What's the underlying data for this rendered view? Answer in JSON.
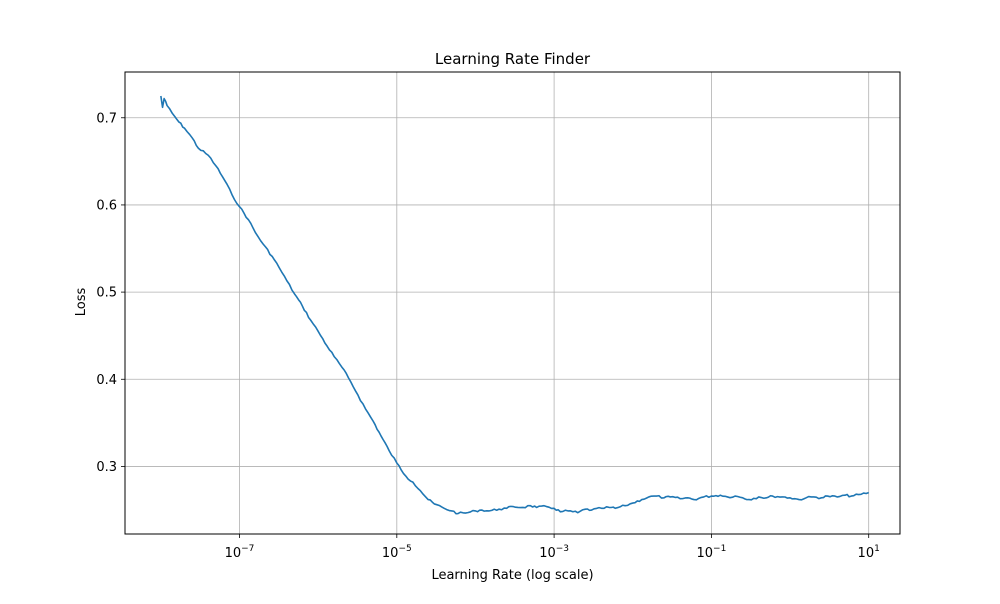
{
  "colors": {
    "line": "#1f77b4",
    "grid": "#b0b0b0",
    "axis": "#000000",
    "background": "#ffffff"
  },
  "chart_data": {
    "type": "line",
    "title": "Learning Rate Finder",
    "xlabel": "Learning Rate (log scale)",
    "ylabel": "Loss",
    "xscale": "log",
    "xlim": [
      3.5e-09,
      25
    ],
    "ylim": [
      0.2225,
      0.7525
    ],
    "grid": true,
    "legend": "none",
    "x_ticks": [
      {
        "value": 1e-07,
        "base": "10",
        "exp": "−7"
      },
      {
        "value": 1e-05,
        "base": "10",
        "exp": "−5"
      },
      {
        "value": 0.001,
        "base": "10",
        "exp": "−3"
      },
      {
        "value": 0.1,
        "base": "10",
        "exp": "−1"
      },
      {
        "value": 10,
        "base": "10",
        "exp": "1"
      }
    ],
    "y_ticks": [
      {
        "value": 0.3,
        "label": "0.3"
      },
      {
        "value": 0.4,
        "label": "0.4"
      },
      {
        "value": 0.5,
        "label": "0.5"
      },
      {
        "value": 0.6,
        "label": "0.6"
      },
      {
        "value": 0.7,
        "label": "0.7"
      }
    ],
    "series": [
      {
        "x": [
          1e-08,
          1.05e-08,
          1.1e-08,
          1.2e-08,
          1.4e-08,
          1.7e-08,
          2e-08,
          2.5e-08,
          3e-08,
          4e-08,
          5e-08,
          6.5e-08,
          8e-08,
          1e-07,
          1.3e-07,
          1.6e-07,
          2e-07,
          2.6e-07,
          3.2e-07,
          4e-07,
          5e-07,
          6.3e-07,
          8e-07,
          1e-06,
          1.3e-06,
          1.6e-06,
          2e-06,
          2.6e-06,
          3.2e-06,
          4e-06,
          5e-06,
          6.3e-06,
          8e-06,
          1e-05,
          1.3e-05,
          1.6e-05,
          2e-05,
          2.5e-05,
          3e-05,
          4e-05,
          5e-05,
          6e-05,
          8e-05,
          0.0001,
          0.00012,
          0.00015,
          0.0002,
          0.00025,
          0.0003,
          0.0004,
          0.0005,
          0.0006,
          0.0008,
          0.001,
          0.0012,
          0.0015,
          0.002,
          0.0025,
          0.003,
          0.004,
          0.005,
          0.006,
          0.008,
          0.01,
          0.013,
          0.016,
          0.02,
          0.025,
          0.03,
          0.04,
          0.05,
          0.06,
          0.08,
          0.1,
          0.13,
          0.16,
          0.2,
          0.25,
          0.3,
          0.4,
          0.5,
          0.6,
          0.8,
          1,
          1.3,
          1.6,
          2,
          2.5,
          3,
          4,
          5,
          6,
          8,
          10
        ],
        "y": [
          0.725,
          0.712,
          0.722,
          0.714,
          0.705,
          0.695,
          0.688,
          0.677,
          0.665,
          0.657,
          0.645,
          0.628,
          0.612,
          0.598,
          0.583,
          0.568,
          0.555,
          0.541,
          0.528,
          0.513,
          0.498,
          0.484,
          0.468,
          0.455,
          0.438,
          0.426,
          0.414,
          0.397,
          0.382,
          0.366,
          0.352,
          0.335,
          0.318,
          0.304,
          0.289,
          0.282,
          0.272,
          0.262,
          0.257,
          0.252,
          0.249,
          0.246,
          0.247,
          0.249,
          0.25,
          0.249,
          0.251,
          0.252,
          0.254,
          0.253,
          0.255,
          0.253,
          0.254,
          0.252,
          0.248,
          0.249,
          0.247,
          0.251,
          0.25,
          0.252,
          0.253,
          0.252,
          0.255,
          0.258,
          0.262,
          0.265,
          0.266,
          0.264,
          0.265,
          0.263,
          0.264,
          0.262,
          0.265,
          0.266,
          0.267,
          0.265,
          0.266,
          0.264,
          0.262,
          0.265,
          0.264,
          0.266,
          0.265,
          0.264,
          0.262,
          0.264,
          0.265,
          0.264,
          0.266,
          0.265,
          0.267,
          0.266,
          0.268,
          0.27
        ]
      }
    ]
  }
}
